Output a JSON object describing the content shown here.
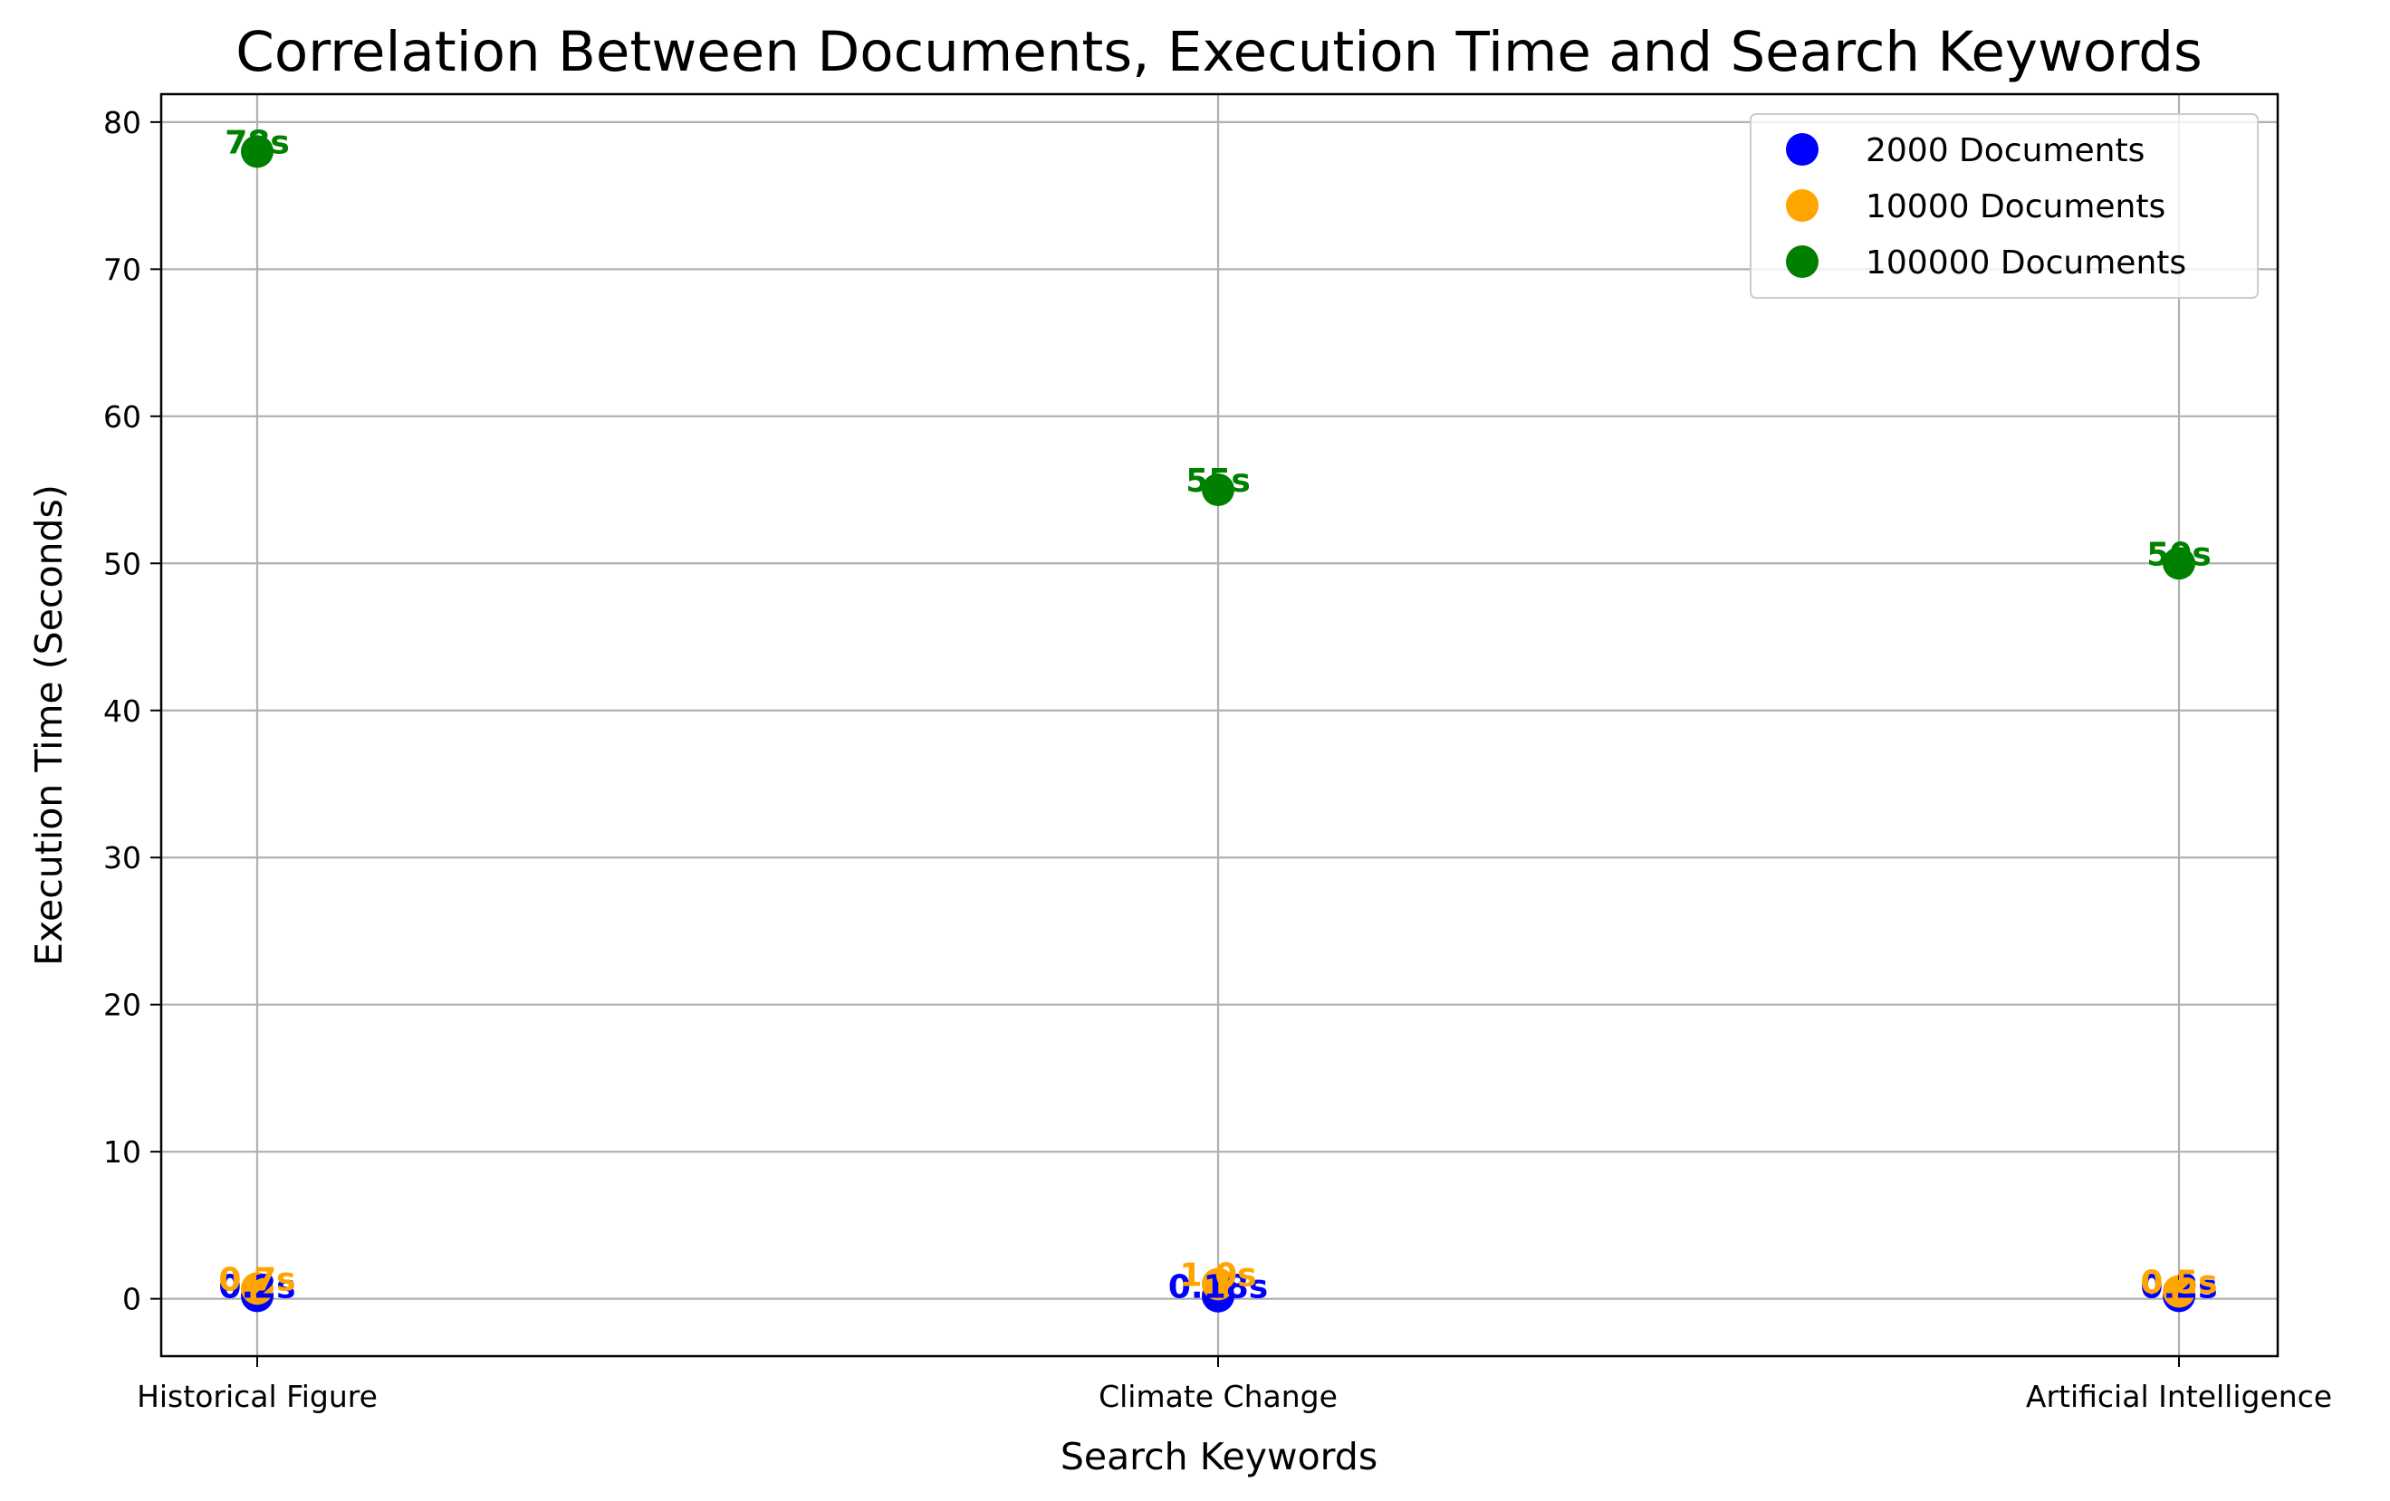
{
  "chart_data": {
    "type": "scatter",
    "title": "Correlation Between Documents, Execution Time and Search Keywords",
    "xlabel": "Search Keywords",
    "ylabel": "Execution Time (Seconds)",
    "categories": [
      "Historical Figure",
      "Climate Change",
      "Artificial Intelligence"
    ],
    "ylim": [
      -3.9,
      81.9
    ],
    "yticks": [
      0,
      10,
      20,
      30,
      40,
      50,
      60,
      70,
      80
    ],
    "grid": true,
    "legend_position": "top-right",
    "series": [
      {
        "name": "2000 Documents",
        "color": "#0000ff",
        "values": [
          0.2,
          0.18,
          0.2
        ],
        "labels": [
          "0.2s",
          "0.18s",
          "0.2s"
        ]
      },
      {
        "name": "10000 Documents",
        "color": "#ffa500",
        "values": [
          0.7,
          1.0,
          0.5
        ],
        "labels": [
          "0.7s",
          "1.0s",
          "0.5s"
        ]
      },
      {
        "name": "100000 Documents",
        "color": "#008000",
        "values": [
          78,
          55,
          50
        ],
        "labels": [
          "78s",
          "55s",
          "50s"
        ]
      }
    ]
  }
}
